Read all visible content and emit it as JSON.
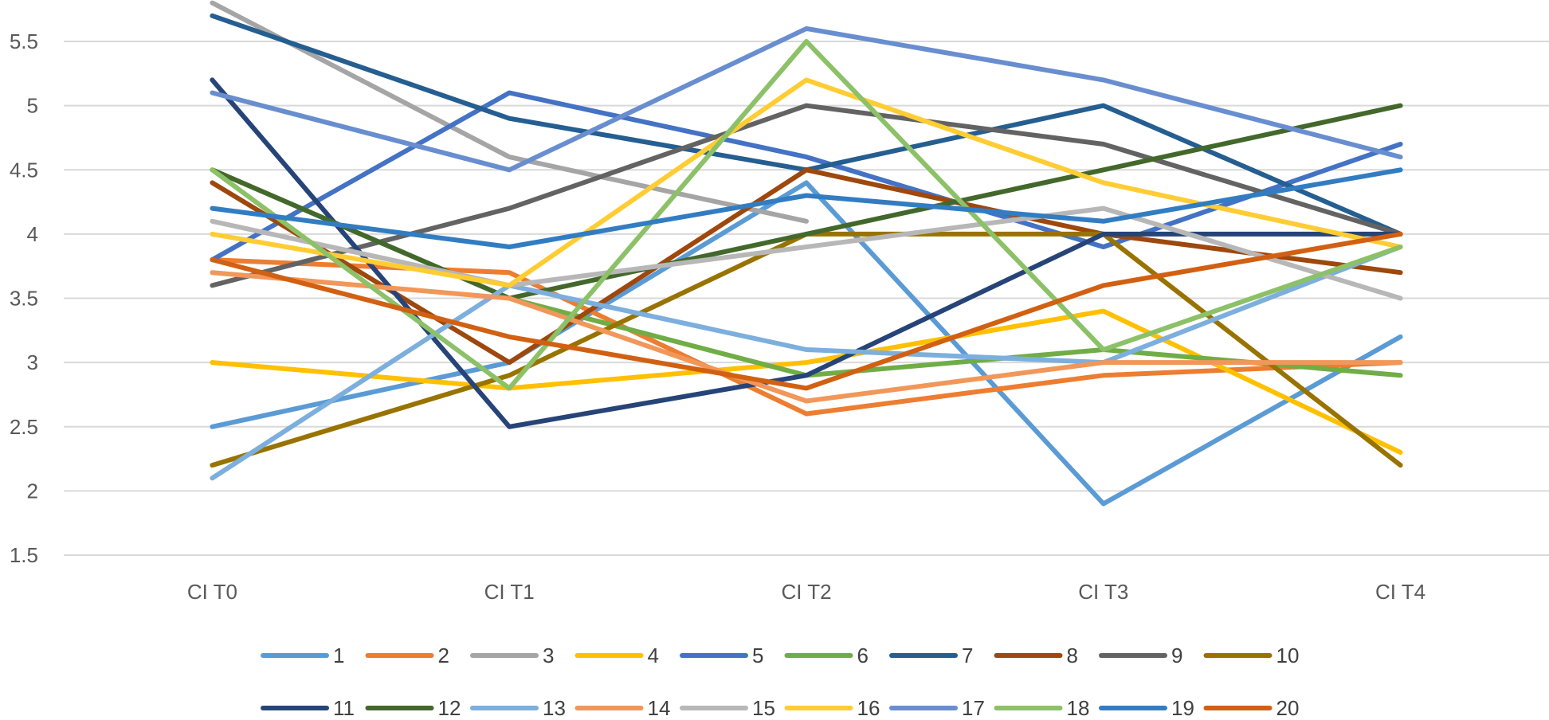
{
  "chart_data": {
    "type": "line",
    "categories": [
      "CI T0",
      "CI T1",
      "CI T2",
      "CI T3",
      "CI T4"
    ],
    "ylim": [
      1.5,
      5.75
    ],
    "yticks": [
      "1.5",
      "2",
      "2.5",
      "3",
      "3.5",
      "4",
      "4.5",
      "5",
      "5.5"
    ],
    "grid": true,
    "legend_position": "bottom",
    "series": [
      {
        "name": "1",
        "color": "#5B9BD5",
        "values": [
          2.5,
          3.0,
          4.4,
          1.9,
          3.2
        ]
      },
      {
        "name": "2",
        "color": "#ED7D31",
        "values": [
          3.8,
          3.7,
          2.6,
          2.9,
          3.0
        ]
      },
      {
        "name": "3",
        "color": "#A5A5A5",
        "values": [
          5.8,
          4.6,
          4.1,
          null,
          null
        ]
      },
      {
        "name": "4",
        "color": "#FFC000",
        "values": [
          3.0,
          2.8,
          3.0,
          3.4,
          2.3
        ]
      },
      {
        "name": "5",
        "color": "#4472C4",
        "values": [
          3.8,
          5.1,
          4.6,
          3.9,
          4.7
        ]
      },
      {
        "name": "6",
        "color": "#70AD47",
        "values": [
          4.5,
          3.5,
          2.9,
          3.1,
          2.9
        ]
      },
      {
        "name": "7",
        "color": "#255E91",
        "values": [
          5.7,
          4.9,
          4.5,
          5.0,
          4.0
        ]
      },
      {
        "name": "8",
        "color": "#9E480E",
        "values": [
          4.4,
          3.0,
          4.5,
          4.0,
          3.7
        ]
      },
      {
        "name": "9",
        "color": "#636363",
        "values": [
          3.6,
          4.2,
          5.0,
          4.7,
          4.0
        ]
      },
      {
        "name": "10",
        "color": "#997300",
        "values": [
          2.2,
          2.9,
          4.0,
          4.0,
          2.2
        ]
      },
      {
        "name": "11",
        "color": "#264478",
        "values": [
          5.2,
          2.5,
          2.9,
          4.0,
          4.0
        ]
      },
      {
        "name": "12",
        "color": "#43682B",
        "values": [
          4.5,
          3.5,
          4.0,
          4.5,
          5.0
        ]
      },
      {
        "name": "13",
        "color": "#7CAFDD",
        "values": [
          2.1,
          3.6,
          3.1,
          3.0,
          3.9
        ]
      },
      {
        "name": "14",
        "color": "#F1975A",
        "values": [
          3.7,
          3.5,
          2.7,
          3.0,
          3.0
        ]
      },
      {
        "name": "15",
        "color": "#B7B7B7",
        "values": [
          4.1,
          3.6,
          3.9,
          4.2,
          3.5
        ]
      },
      {
        "name": "16",
        "color": "#FFCD33",
        "values": [
          4.0,
          3.6,
          5.2,
          4.4,
          3.9
        ]
      },
      {
        "name": "17",
        "color": "#698ED0",
        "values": [
          5.1,
          4.5,
          5.6,
          5.2,
          4.6
        ]
      },
      {
        "name": "18",
        "color": "#8CC168",
        "values": [
          4.5,
          2.8,
          5.5,
          3.1,
          3.9
        ]
      },
      {
        "name": "19",
        "color": "#327DC2",
        "values": [
          4.2,
          3.9,
          4.3,
          4.1,
          4.5
        ]
      },
      {
        "name": "20",
        "color": "#D26012",
        "values": [
          3.8,
          3.2,
          2.8,
          3.6,
          4.0
        ]
      }
    ]
  }
}
